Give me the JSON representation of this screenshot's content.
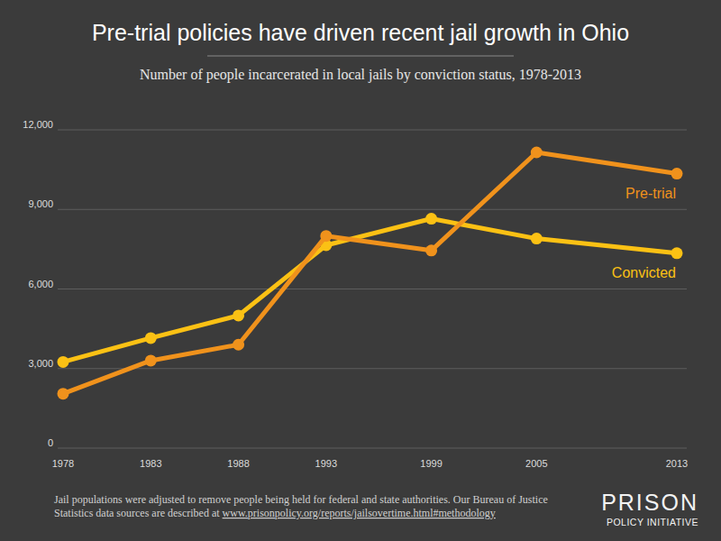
{
  "chart_data": {
    "type": "line",
    "title": "Pre-trial policies have driven recent jail growth in Ohio",
    "subtitle": "Number of people incarcerated in local jails by conviction status, 1978-2013",
    "x": [
      1978,
      1983,
      1988,
      1993,
      1999,
      2005,
      2013
    ],
    "xlim": [
      1978,
      2013
    ],
    "xticks": [
      1978,
      1983,
      1988,
      1993,
      1999,
      2005,
      2013
    ],
    "ylim": [
      0,
      12000
    ],
    "yticks": [
      0,
      {
        "value": 3000,
        "label": "3,000"
      },
      {
        "value": 6000,
        "label": "6,000"
      },
      {
        "value": 9000,
        "label": "9,000"
      },
      {
        "value": 12000,
        "label": "12,000"
      }
    ],
    "grid": true,
    "marker": "circle",
    "series": [
      {
        "name": "Pre-trial",
        "color": "#f0921c",
        "values": [
          2050,
          3300,
          3900,
          8000,
          7450,
          11150,
          10350
        ]
      },
      {
        "name": "Convicted",
        "color": "#fbc114",
        "values": [
          3250,
          4150,
          5000,
          7650,
          8650,
          7900,
          7350
        ]
      }
    ],
    "source": [
      "Jail populations were adjusted to remove people being held for federal and state authorities. Our Bureau of Justice",
      "Statistics data sources are described at ",
      "www.prisonpolicy.org/reports/jailsovertime.html#methodology"
    ],
    "logo": [
      "PRISON",
      "POLICY INITIATIVE"
    ]
  }
}
